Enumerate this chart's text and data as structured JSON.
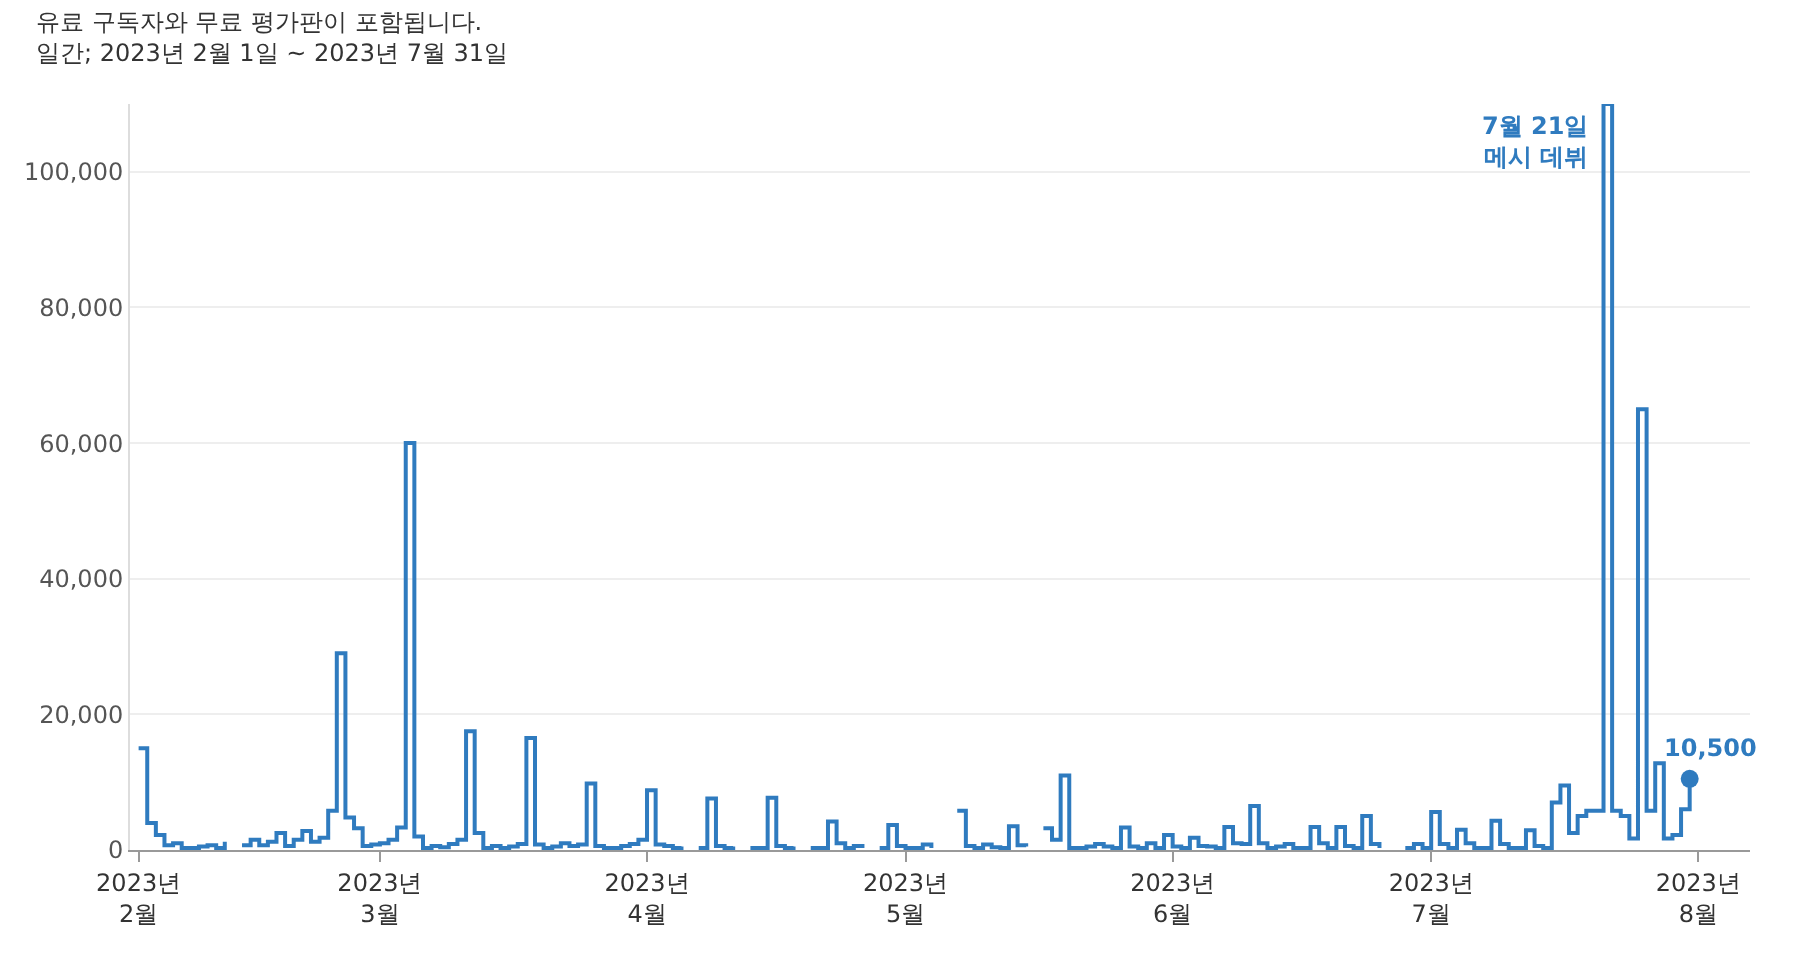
{
  "chart_data": {
    "type": "step",
    "title": "유료 구독자와 무료 평가판이 포함됩니다.",
    "subtitle": "일간; 2023년 2월 1일 ~ 2023년 7월 31일",
    "series": [
      {
        "color": "#2f7bbf",
        "values": [
          15000,
          4000,
          2200,
          700,
          1000,
          300,
          300,
          500,
          700,
          300,
          1200,
          null,
          700,
          1500,
          700,
          1200,
          2500,
          600,
          1500,
          2800,
          1200,
          1800,
          5800,
          29000,
          4800,
          3200,
          600,
          800,
          1000,
          1500,
          3300,
          60000,
          2000,
          300,
          600,
          400,
          900,
          1500,
          17500,
          2500,
          300,
          600,
          300,
          500,
          900,
          16500,
          800,
          300,
          500,
          1000,
          600,
          800,
          9800,
          600,
          300,
          300,
          600,
          900,
          1500,
          8800,
          800,
          600,
          300,
          500,
          null,
          300,
          7600,
          600,
          300,
          500,
          null,
          300,
          300,
          7700,
          600,
          300,
          500,
          null,
          300,
          300,
          4200,
          1000,
          300,
          600,
          900,
          null,
          300,
          3700,
          600,
          300,
          300,
          800,
          300,
          null,
          null,
          5800,
          600,
          300,
          800,
          400,
          300,
          3500,
          700,
          500,
          null,
          3200,
          1500,
          11000,
          300,
          300,
          500,
          900,
          500,
          300,
          3300,
          500,
          300,
          1000,
          300,
          2200,
          500,
          300,
          1800,
          600,
          500,
          300,
          3400,
          1000,
          900,
          6500,
          1000,
          300,
          500,
          900,
          300,
          300,
          3400,
          1000,
          300,
          3400,
          600,
          300,
          5000,
          900,
          300,
          null,
          null,
          300,
          900,
          300,
          5600,
          900,
          300,
          3000,
          1000,
          300,
          300,
          4300,
          900,
          300,
          300,
          2900,
          600,
          300,
          7000,
          9500,
          2500,
          5000,
          5800,
          5800,
          110000,
          5800,
          5000,
          1700,
          65000,
          5800,
          12800,
          1700,
          2200,
          6000,
          10500
        ]
      }
    ],
    "x": [
      "2023-02-01",
      "2023-02-02",
      "2023-02-03",
      "2023-02-04",
      "2023-02-05",
      "2023-02-06",
      "2023-02-07",
      "2023-02-08",
      "2023-02-09",
      "2023-02-10",
      "2023-02-11",
      "2023-02-12",
      "2023-02-13",
      "2023-02-14",
      "2023-02-15",
      "2023-02-16",
      "2023-02-17",
      "2023-02-18",
      "2023-02-19",
      "2023-02-20",
      "2023-02-21",
      "2023-02-22",
      "2023-02-23",
      "2023-02-24",
      "2023-02-25",
      "2023-02-26",
      "2023-02-27",
      "2023-02-28",
      "2023-03-01",
      "2023-03-02",
      "2023-03-03",
      "2023-03-04",
      "2023-03-05",
      "2023-03-06",
      "2023-03-07",
      "2023-03-08",
      "2023-03-09",
      "2023-03-10",
      "2023-03-11",
      "2023-03-12",
      "2023-03-13",
      "2023-03-14",
      "2023-03-15",
      "2023-03-16",
      "2023-03-17",
      "2023-03-18",
      "2023-03-19",
      "2023-03-20",
      "2023-03-21",
      "2023-03-22",
      "2023-03-23",
      "2023-03-24",
      "2023-03-25",
      "2023-03-26",
      "2023-03-27",
      "2023-03-28",
      "2023-03-29",
      "2023-03-30",
      "2023-03-31",
      "2023-04-01",
      "2023-04-02",
      "2023-04-03",
      "2023-04-04",
      "2023-04-05",
      "2023-04-06",
      "2023-04-07",
      "2023-04-08",
      "2023-04-09",
      "2023-04-10",
      "2023-04-11",
      "2023-04-12",
      "2023-04-13",
      "2023-04-14",
      "2023-04-15",
      "2023-04-16",
      "2023-04-17",
      "2023-04-18",
      "2023-04-19",
      "2023-04-20",
      "2023-04-21",
      "2023-04-22",
      "2023-04-23",
      "2023-04-24",
      "2023-04-25",
      "2023-04-26",
      "2023-04-27",
      "2023-04-28",
      "2023-04-29",
      "2023-04-30",
      "2023-05-01",
      "2023-05-02",
      "2023-05-03",
      "2023-05-04",
      "2023-05-05",
      "2023-05-06",
      "2023-05-07",
      "2023-05-08",
      "2023-05-09",
      "2023-05-10",
      "2023-05-11",
      "2023-05-12",
      "2023-05-13",
      "2023-05-14",
      "2023-05-15",
      "2023-05-16",
      "2023-05-17",
      "2023-05-18",
      "2023-05-19",
      "2023-05-20",
      "2023-05-21",
      "2023-05-22",
      "2023-05-23",
      "2023-05-24",
      "2023-05-25",
      "2023-05-26",
      "2023-05-27",
      "2023-05-28",
      "2023-05-29",
      "2023-05-30",
      "2023-05-31",
      "2023-06-01",
      "2023-06-02",
      "2023-06-03",
      "2023-06-04",
      "2023-06-05",
      "2023-06-06",
      "2023-06-07",
      "2023-06-08",
      "2023-06-09",
      "2023-06-10",
      "2023-06-11",
      "2023-06-12",
      "2023-06-13",
      "2023-06-14",
      "2023-06-15",
      "2023-06-16",
      "2023-06-17",
      "2023-06-18",
      "2023-06-19",
      "2023-06-20",
      "2023-06-21",
      "2023-06-22",
      "2023-06-23",
      "2023-06-24",
      "2023-06-25",
      "2023-06-26",
      "2023-06-27",
      "2023-06-28",
      "2023-06-29",
      "2023-06-30",
      "2023-07-01",
      "2023-07-02",
      "2023-07-03",
      "2023-07-04",
      "2023-07-05",
      "2023-07-06",
      "2023-07-07",
      "2023-07-08",
      "2023-07-09",
      "2023-07-10",
      "2023-07-11",
      "2023-07-12",
      "2023-07-13",
      "2023-07-14",
      "2023-07-15",
      "2023-07-16",
      "2023-07-17",
      "2023-07-18",
      "2023-07-19",
      "2023-07-20",
      "2023-07-21",
      "2023-07-22",
      "2023-07-23",
      "2023-07-24",
      "2023-07-25",
      "2023-07-26",
      "2023-07-27",
      "2023-07-28",
      "2023-07-29",
      "2023-07-30",
      "2023-07-31"
    ],
    "xlim": [
      "2023-01-31",
      "2023-08-07"
    ],
    "xticks": [
      {
        "value": "2023-02-01",
        "label": "2023년\n2월"
      },
      {
        "value": "2023-03-01",
        "label": "2023년\n3월"
      },
      {
        "value": "2023-04-01",
        "label": "2023년\n4월"
      },
      {
        "value": "2023-05-01",
        "label": "2023년\n5월"
      },
      {
        "value": "2023-06-01",
        "label": "2023년\n6월"
      },
      {
        "value": "2023-07-01",
        "label": "2023년\n7월"
      },
      {
        "value": "2023-08-01",
        "label": "2023년\n8월"
      }
    ],
    "ylim": [
      0,
      110000
    ],
    "yticks": [
      {
        "value": 0,
        "label": "0"
      },
      {
        "value": 20000,
        "label": "20,000"
      },
      {
        "value": 40000,
        "label": "40,000"
      },
      {
        "value": 60000,
        "label": "60,000"
      },
      {
        "value": 80000,
        "label": "80,000"
      },
      {
        "value": 100000,
        "label": "100,000"
      }
    ],
    "grid": "y",
    "legend": false,
    "annotations": [
      {
        "text": "7월 21일\n메시 데뷔",
        "x": "2023-07-21",
        "y": 110000
      },
      {
        "text": "10,500",
        "x": "2023-07-31",
        "y": 10500
      }
    ]
  }
}
